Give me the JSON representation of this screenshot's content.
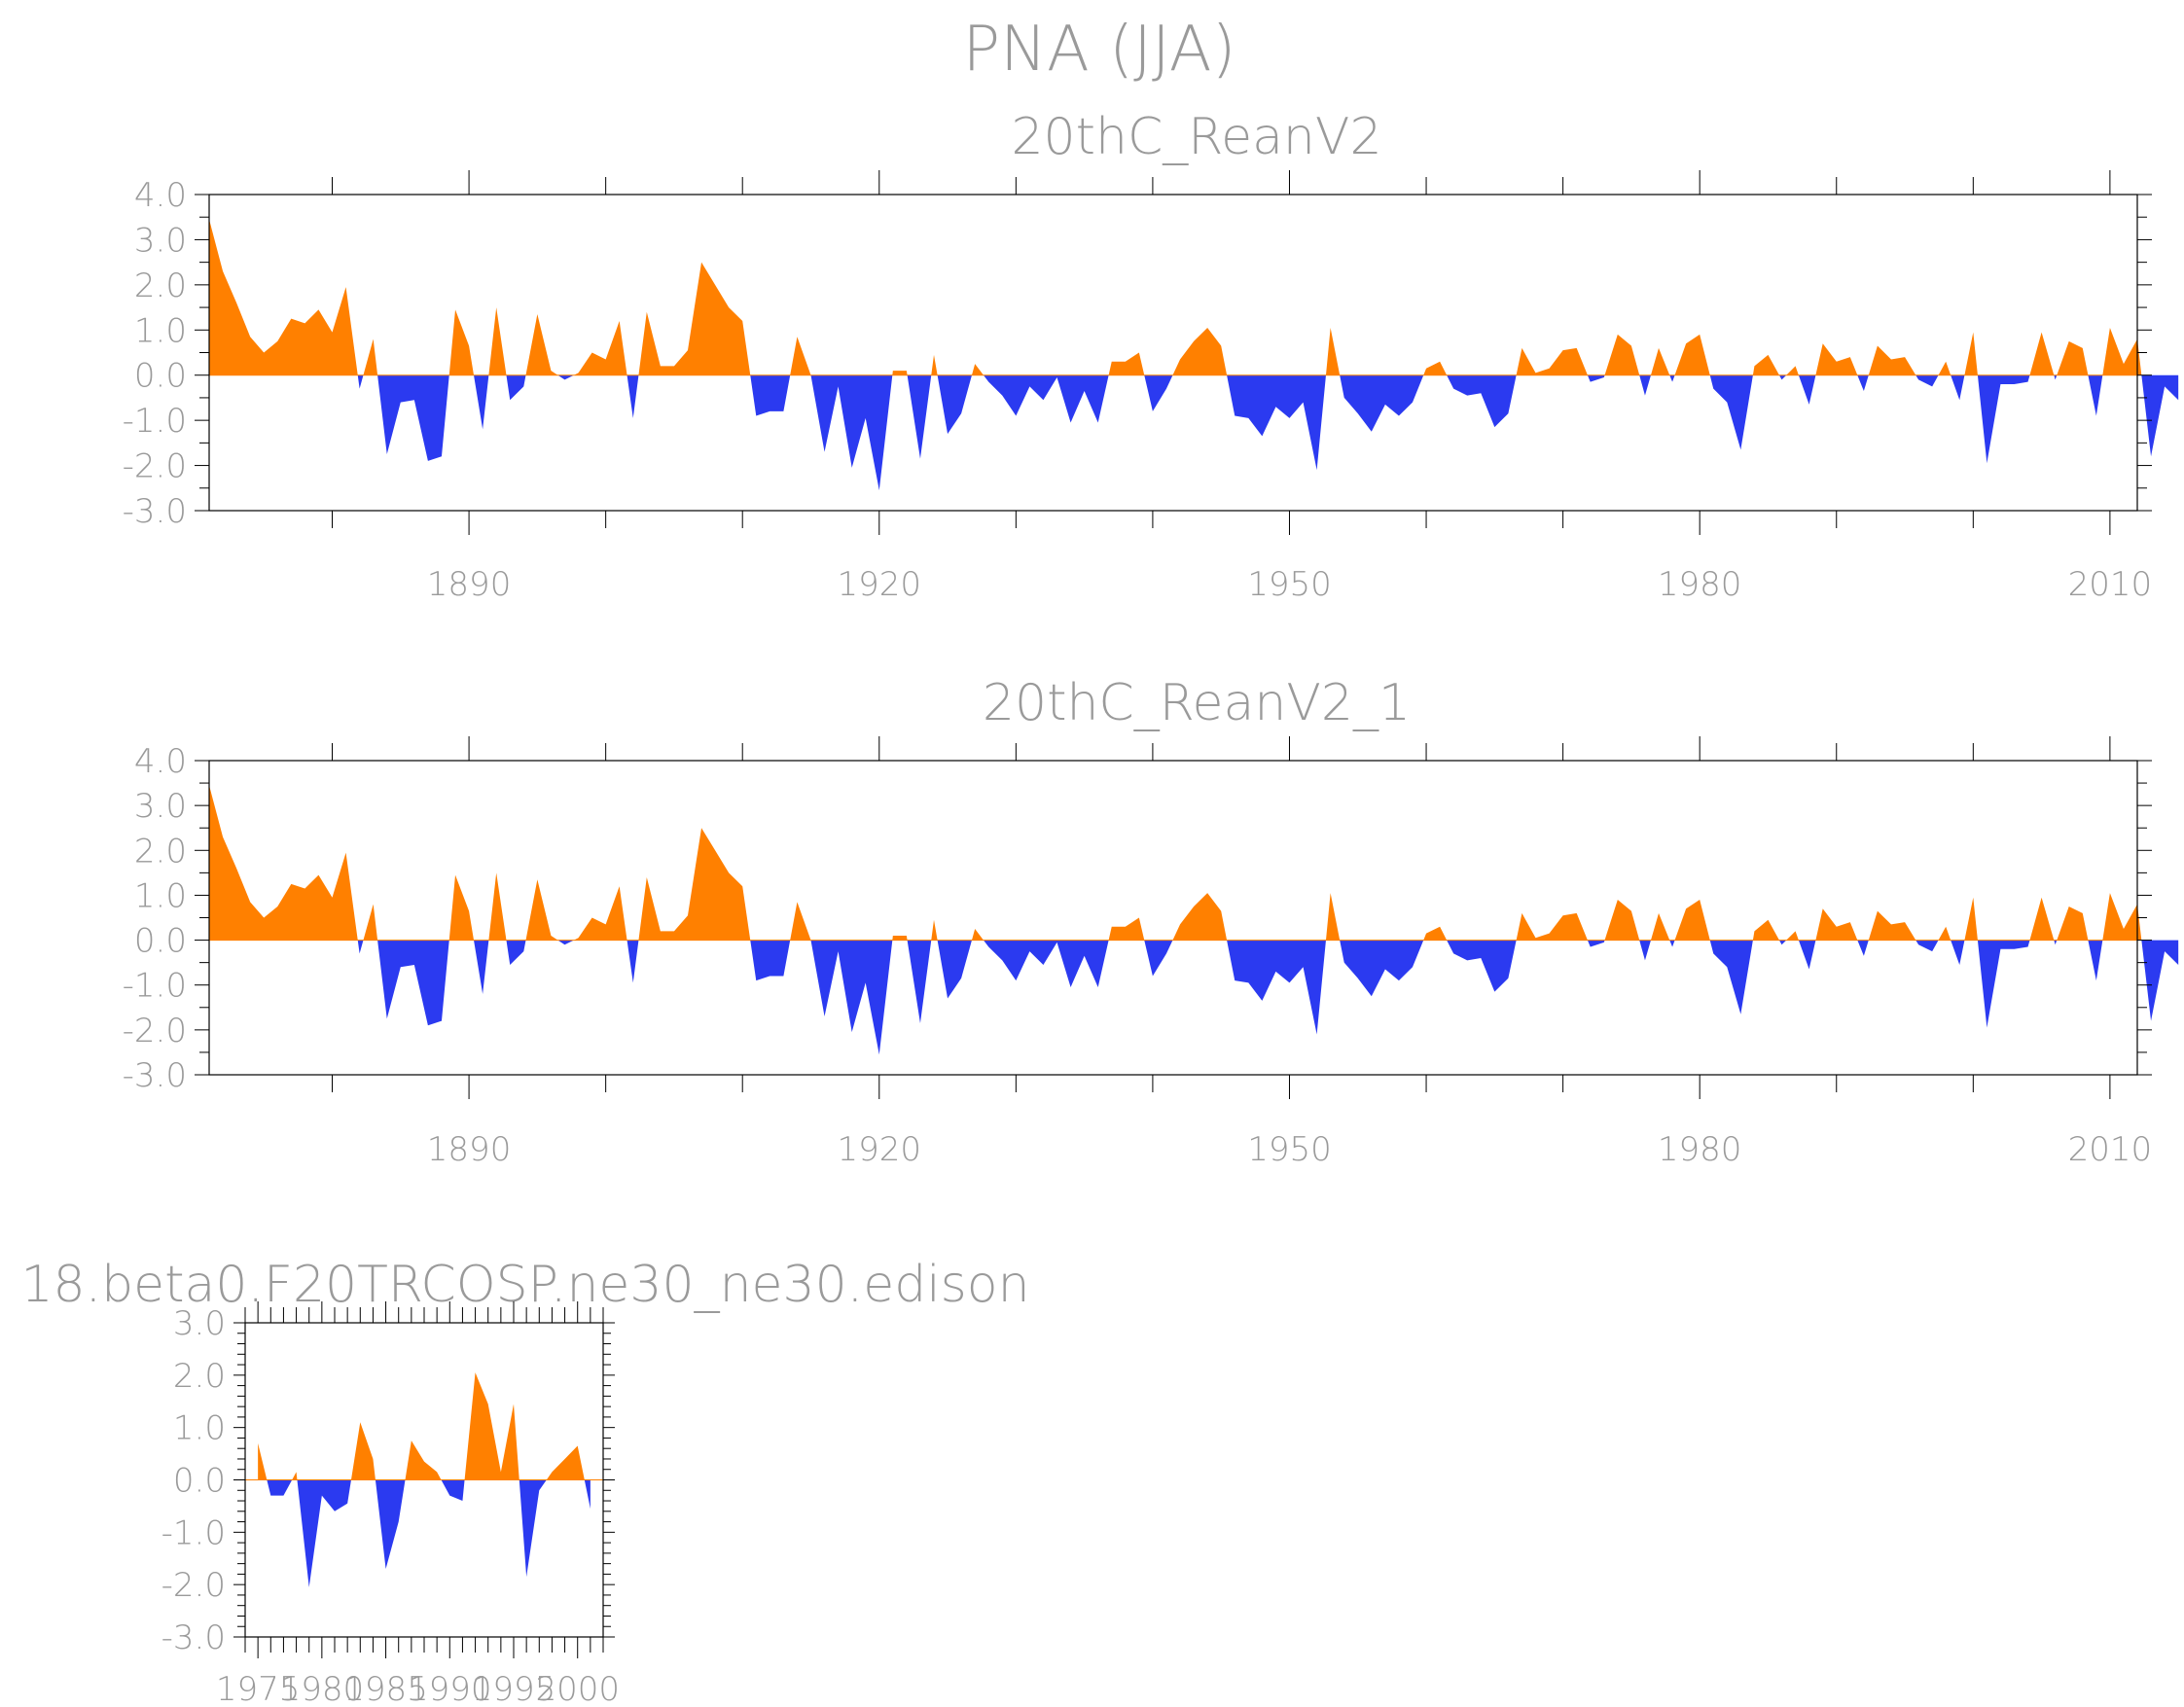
{
  "page_title": "PNA (JJA)",
  "colors": {
    "positive": "#ff8000",
    "negative": "#2b3af0",
    "text": "#9a9a9a",
    "axis": "#000000"
  },
  "chart_data": [
    {
      "type": "area",
      "title": "20thC_ReanV2",
      "xlabel": "",
      "ylabel": "",
      "xlim": [
        1871,
        2012
      ],
      "ylim": [
        -3.0,
        4.0
      ],
      "xticks": [
        1890,
        1920,
        1950,
        1980,
        2010
      ],
      "yticks": [
        4.0,
        3.0,
        2.0,
        1.0,
        0.0,
        -1.0,
        -2.0,
        -3.0
      ],
      "grid": false,
      "fill_above_zero": "orange",
      "fill_below_zero": "blue",
      "x_start": 1871,
      "values": [
        3.45,
        2.3,
        1.6,
        0.85,
        0.5,
        0.75,
        1.25,
        1.15,
        1.45,
        0.95,
        1.95,
        -0.3,
        0.8,
        -1.75,
        -0.6,
        -0.55,
        -1.9,
        -1.8,
        1.45,
        0.65,
        -1.2,
        1.5,
        -0.55,
        -0.25,
        1.35,
        0.1,
        -0.1,
        0.05,
        0.5,
        0.35,
        1.2,
        -0.95,
        1.4,
        0.2,
        0.2,
        0.55,
        2.5,
        2.0,
        1.5,
        1.2,
        -0.9,
        -0.8,
        -0.8,
        0.85,
        0.0,
        -1.7,
        -0.25,
        -2.05,
        -0.95,
        -2.55,
        0.1,
        0.1,
        -1.85,
        0.45,
        -1.3,
        -0.85,
        0.25,
        -0.15,
        -0.45,
        -0.9,
        -0.25,
        -0.55,
        -0.05,
        -1.05,
        -0.35,
        -1.05,
        0.3,
        0.3,
        0.5,
        -0.8,
        -0.3,
        0.35,
        0.75,
        1.05,
        0.65,
        -0.9,
        -0.95,
        -1.35,
        -0.7,
        -0.95,
        -0.6,
        -2.1,
        1.05,
        -0.5,
        -0.85,
        -1.25,
        -0.65,
        -0.9,
        -0.6,
        0.15,
        0.3,
        -0.3,
        -0.45,
        -0.4,
        -1.15,
        -0.85,
        0.6,
        0.05,
        0.15,
        0.55,
        0.6,
        -0.15,
        -0.05,
        0.9,
        0.65,
        -0.45,
        0.6,
        -0.15,
        0.7,
        0.9,
        -0.3,
        -0.6,
        -1.65,
        0.2,
        0.45,
        -0.1,
        0.2,
        -0.65,
        0.7,
        0.3,
        0.4,
        -0.35,
        0.65,
        0.35,
        0.4,
        -0.1,
        -0.25,
        0.3,
        -0.55,
        0.95,
        -1.95,
        -0.2,
        -0.2,
        -0.15,
        0.95,
        -0.1,
        0.75,
        0.6,
        -0.9,
        1.05,
        0.25,
        0.8,
        -1.8,
        -0.25,
        -0.55
      ]
    },
    {
      "type": "area",
      "title": "20thC_ReanV2_1",
      "xlabel": "",
      "ylabel": "",
      "xlim": [
        1871,
        2012
      ],
      "ylim": [
        -3.0,
        4.0
      ],
      "xticks": [
        1890,
        1920,
        1950,
        1980,
        2010
      ],
      "yticks": [
        4.0,
        3.0,
        2.0,
        1.0,
        0.0,
        -1.0,
        -2.0,
        -3.0
      ],
      "grid": false,
      "fill_above_zero": "orange",
      "fill_below_zero": "blue",
      "x_start": 1871,
      "values": [
        3.45,
        2.3,
        1.6,
        0.85,
        0.5,
        0.75,
        1.25,
        1.15,
        1.45,
        0.95,
        1.95,
        -0.3,
        0.8,
        -1.75,
        -0.6,
        -0.55,
        -1.9,
        -1.8,
        1.45,
        0.65,
        -1.2,
        1.5,
        -0.55,
        -0.25,
        1.35,
        0.1,
        -0.1,
        0.05,
        0.5,
        0.35,
        1.2,
        -0.95,
        1.4,
        0.2,
        0.2,
        0.55,
        2.5,
        2.0,
        1.5,
        1.2,
        -0.9,
        -0.8,
        -0.8,
        0.85,
        0.0,
        -1.7,
        -0.25,
        -2.05,
        -0.95,
        -2.55,
        0.1,
        0.1,
        -1.85,
        0.45,
        -1.3,
        -0.85,
        0.25,
        -0.15,
        -0.45,
        -0.9,
        -0.25,
        -0.55,
        -0.05,
        -1.05,
        -0.35,
        -1.05,
        0.3,
        0.3,
        0.5,
        -0.8,
        -0.3,
        0.35,
        0.75,
        1.05,
        0.65,
        -0.9,
        -0.95,
        -1.35,
        -0.7,
        -0.95,
        -0.6,
        -2.1,
        1.05,
        -0.5,
        -0.85,
        -1.25,
        -0.65,
        -0.9,
        -0.6,
        0.15,
        0.3,
        -0.3,
        -0.45,
        -0.4,
        -1.15,
        -0.85,
        0.6,
        0.05,
        0.15,
        0.55,
        0.6,
        -0.15,
        -0.05,
        0.9,
        0.65,
        -0.45,
        0.6,
        -0.15,
        0.7,
        0.9,
        -0.3,
        -0.6,
        -1.65,
        0.2,
        0.45,
        -0.1,
        0.2,
        -0.65,
        0.7,
        0.3,
        0.4,
        -0.35,
        0.65,
        0.35,
        0.4,
        -0.1,
        -0.25,
        0.3,
        -0.55,
        0.95,
        -1.95,
        -0.2,
        -0.2,
        -0.15,
        0.95,
        -0.1,
        0.75,
        0.6,
        -0.9,
        1.05,
        0.25,
        0.8,
        -1.8,
        -0.25,
        -0.55
      ]
    },
    {
      "type": "area",
      "title": "18.beta0.F20TRCOSP.ne30_ne30.edison",
      "xlabel": "",
      "ylabel": "",
      "xlim": [
        1974,
        2002
      ],
      "ylim": [
        -3.0,
        3.0
      ],
      "xticks": [
        1975,
        1980,
        1985,
        1990,
        1995,
        2000
      ],
      "yticks": [
        3.0,
        2.0,
        1.0,
        0.0,
        -1.0,
        -2.0,
        -3.0
      ],
      "grid": false,
      "fill_above_zero": "orange",
      "fill_below_zero": "blue",
      "x_start": 1975,
      "values": [
        0.7,
        -0.3,
        -0.3,
        0.15,
        -2.05,
        -0.3,
        -0.6,
        -0.45,
        1.1,
        0.4,
        -1.7,
        -0.8,
        0.75,
        0.35,
        0.15,
        -0.3,
        -0.4,
        2.05,
        1.45,
        0.15,
        1.45,
        -1.85,
        -0.2,
        0.15,
        0.4,
        0.65,
        -0.55
      ]
    }
  ]
}
